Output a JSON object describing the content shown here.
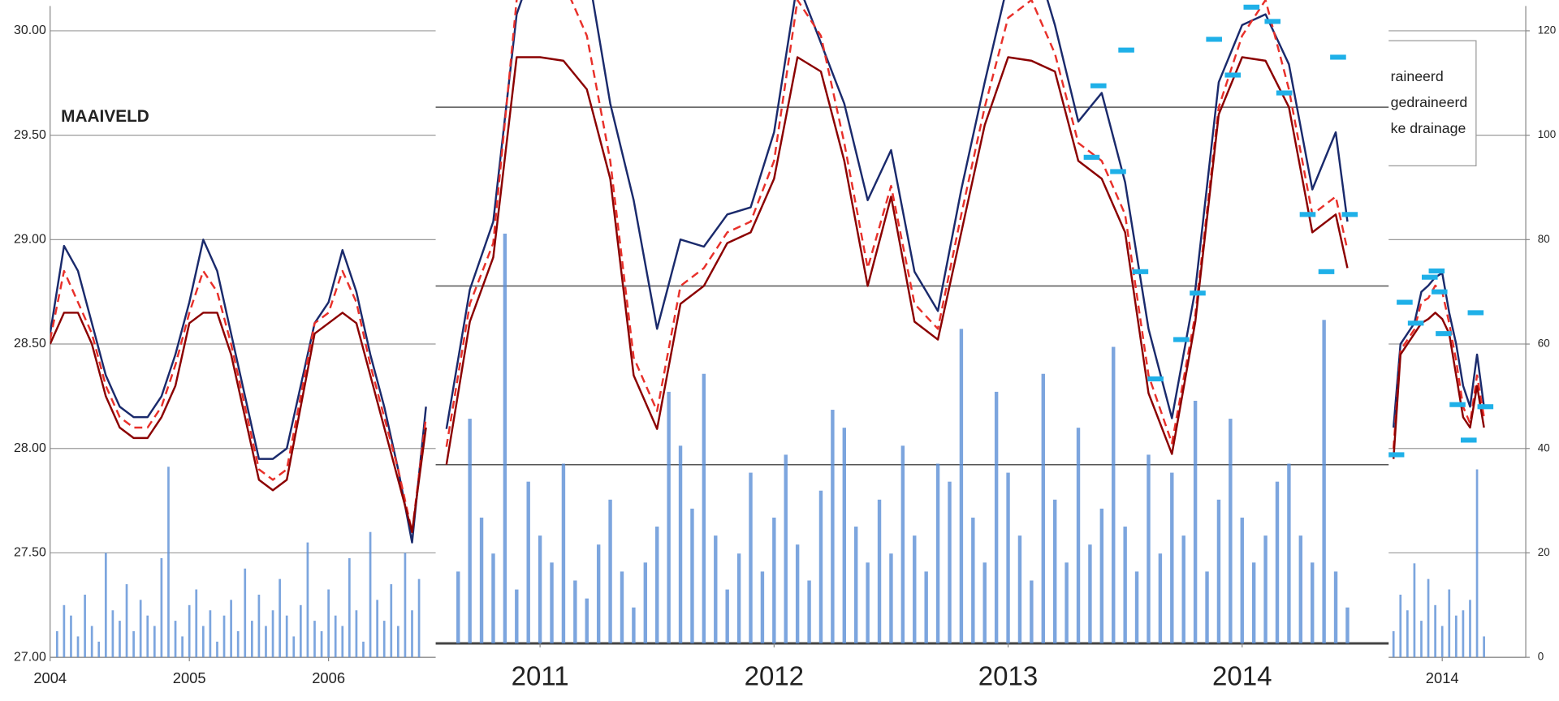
{
  "chart_data": [
    {
      "type": "line",
      "annotation": "MAAIVELD",
      "legend": [
        "raineerd",
        "gedraineerd",
        "ke drainage"
      ],
      "xlim": [
        2004,
        2014.6
      ],
      "xticks": [
        2004,
        2005,
        2006,
        2014
      ],
      "ylim": [
        27,
        30
      ],
      "yticks": [
        {
          "value": 27,
          "label": "27.00"
        },
        {
          "value": 27.5,
          "label": "27.50"
        },
        {
          "value": 28,
          "label": "28.00"
        },
        {
          "value": 28.5,
          "label": "28.50"
        },
        {
          "value": 29,
          "label": "29.00"
        },
        {
          "value": 29.5,
          "label": "29.50"
        },
        {
          "value": 30,
          "label": "30.00"
        }
      ],
      "y2lim": [
        0,
        120
      ],
      "y2ticks": [
        0,
        20,
        40,
        60,
        80,
        100,
        120
      ],
      "grid": true,
      "x": [
        2004,
        2004.1,
        2004.2,
        2004.3,
        2004.4,
        2004.5,
        2004.6,
        2004.7,
        2004.8,
        2004.9,
        2005,
        2005.1,
        2005.2,
        2005.3,
        2005.4,
        2005.5,
        2005.6,
        2005.7,
        2005.8,
        2005.9,
        2006,
        2006.1,
        2006.2,
        2006.3,
        2006.4,
        2006.5,
        2006.6,
        2006.7,
        2010,
        2013.65,
        2013.7,
        2013.75,
        2013.8,
        2013.85,
        2013.9,
        2013.95,
        2014,
        2014.05,
        2014.1,
        2014.15,
        2014.2,
        2014.25,
        2014.3
      ],
      "series": [
        {
          "style": "bar",
          "axis": "y2",
          "color": "#5b8fd6",
          "x": [
            2004.05,
            2004.1,
            2004.15,
            2004.2,
            2004.25,
            2004.3,
            2004.35,
            2004.4,
            2004.45,
            2004.5,
            2004.55,
            2004.6,
            2004.65,
            2004.7,
            2004.75,
            2004.8,
            2004.85,
            2004.9,
            2004.95,
            2005,
            2005.05,
            2005.1,
            2005.15,
            2005.2,
            2005.25,
            2005.3,
            2005.35,
            2005.4,
            2005.45,
            2005.5,
            2005.55,
            2005.6,
            2005.65,
            2005.7,
            2005.75,
            2005.8,
            2005.85,
            2005.9,
            2005.95,
            2006,
            2006.05,
            2006.1,
            2006.15,
            2006.2,
            2006.25,
            2006.3,
            2006.35,
            2006.4,
            2006.45,
            2006.5,
            2006.55,
            2006.6,
            2006.65,
            2013.65,
            2013.7,
            2013.75,
            2013.8,
            2013.85,
            2013.9,
            2013.95,
            2014,
            2014.05,
            2014.1,
            2014.15,
            2014.2,
            2014.25,
            2014.3
          ],
          "values": [
            5,
            10,
            8,
            4,
            12,
            6,
            3,
            20,
            9,
            7,
            14,
            5,
            11,
            8,
            6,
            19,
            36.5,
            7,
            4,
            10,
            13,
            6,
            9,
            3,
            8,
            11,
            5,
            17,
            7,
            12,
            6,
            9,
            15,
            8,
            4,
            10,
            22,
            7,
            5,
            13,
            8,
            6,
            19,
            9,
            3,
            24,
            11,
            7,
            14,
            6,
            20,
            9,
            15,
            5,
            12,
            9,
            18,
            7,
            15,
            10,
            6,
            13,
            8,
            9,
            11,
            36,
            4
          ]
        },
        {
          "style": "line",
          "color": "#1a2a6c",
          "values": [
            28.55,
            28.97,
            28.85,
            28.6,
            28.35,
            28.2,
            28.15,
            28.15,
            28.25,
            28.45,
            28.7,
            29.0,
            28.85,
            28.55,
            28.25,
            27.95,
            27.95,
            28.0,
            28.3,
            28.6,
            28.7,
            28.95,
            28.75,
            28.45,
            28.2,
            27.9,
            27.55,
            28.2,
            null,
            28.1,
            28.5,
            28.55,
            28.6,
            28.75,
            28.78,
            28.82,
            28.84,
            28.65,
            28.5,
            28.3,
            28.2,
            28.45,
            28.2
          ]
        },
        {
          "style": "dash",
          "color": "#e8302a",
          "values": [
            28.52,
            28.85,
            28.7,
            28.55,
            28.3,
            28.15,
            28.1,
            28.1,
            28.2,
            28.4,
            28.65,
            28.85,
            28.75,
            28.5,
            28.2,
            27.9,
            27.85,
            27.9,
            28.25,
            28.6,
            28.65,
            28.85,
            28.7,
            28.4,
            28.15,
            27.9,
            27.6,
            28.15,
            null,
            28.0,
            28.47,
            28.52,
            28.57,
            28.7,
            28.72,
            28.78,
            28.75,
            28.6,
            28.42,
            28.2,
            28.12,
            28.35,
            28.15
          ]
        },
        {
          "style": "line",
          "color": "#8b0000",
          "values": [
            28.5,
            28.65,
            28.65,
            28.5,
            28.25,
            28.1,
            28.05,
            28.05,
            28.15,
            28.3,
            28.6,
            28.65,
            28.65,
            28.45,
            28.15,
            27.85,
            27.8,
            27.85,
            28.2,
            28.55,
            28.6,
            28.65,
            28.6,
            28.35,
            28.1,
            27.85,
            27.6,
            28.1,
            null,
            27.95,
            28.45,
            28.5,
            28.55,
            28.6,
            28.62,
            28.65,
            28.62,
            28.55,
            28.35,
            28.15,
            28.1,
            28.3,
            28.1
          ]
        },
        {
          "style": "marker",
          "color": "#1fb0e8",
          "x": [
            2013.67,
            2013.73,
            2013.81,
            2013.91,
            2013.96,
            2013.98,
            2014.01,
            2014.11,
            2014.19,
            2014.24,
            2014.31
          ],
          "values": [
            27.97,
            28.7,
            28.6,
            28.82,
            28.85,
            28.75,
            28.55,
            28.21,
            28.04,
            28.65,
            28.2
          ]
        }
      ]
    },
    {
      "type": "line",
      "xlim": [
        2010.554,
        2014.626
      ],
      "xticks": [
        2011,
        2012,
        2013,
        2014
      ],
      "ylim": [
        27.5,
        29.3
      ],
      "ygrid": [
        27.5,
        28,
        28.5,
        29
      ],
      "y2lim": [
        0,
        71.6
      ],
      "x": [
        2010.6,
        2010.7,
        2010.8,
        2010.9,
        2011,
        2011.1,
        2011.2,
        2011.3,
        2011.4,
        2011.5,
        2011.6,
        2011.7,
        2011.8,
        2011.9,
        2012,
        2012.1,
        2012.2,
        2012.3,
        2012.4,
        2012.5,
        2012.6,
        2012.7,
        2012.8,
        2012.9,
        2013,
        2013.1,
        2013.2,
        2013.3,
        2013.4,
        2013.5,
        2013.6,
        2013.7,
        2013.8,
        2013.9,
        2014,
        2014.1,
        2014.2,
        2014.3,
        2014.4,
        2014.45
      ],
      "series": [
        {
          "style": "bar",
          "axis": "y2",
          "color": "#5b8fd6",
          "x": [
            2010.65,
            2010.7,
            2010.75,
            2010.8,
            2010.85,
            2010.9,
            2010.95,
            2011,
            2011.05,
            2011.1,
            2011.15,
            2011.2,
            2011.25,
            2011.3,
            2011.35,
            2011.4,
            2011.45,
            2011.5,
            2011.55,
            2011.6,
            2011.65,
            2011.7,
            2011.75,
            2011.8,
            2011.85,
            2011.9,
            2011.95,
            2012,
            2012.05,
            2012.1,
            2012.15,
            2012.2,
            2012.25,
            2012.3,
            2012.35,
            2012.4,
            2012.45,
            2012.5,
            2012.55,
            2012.6,
            2012.65,
            2012.7,
            2012.75,
            2012.8,
            2012.85,
            2012.9,
            2012.95,
            2013,
            2013.05,
            2013.1,
            2013.15,
            2013.2,
            2013.25,
            2013.3,
            2013.35,
            2013.4,
            2013.45,
            2013.5,
            2013.55,
            2013.6,
            2013.65,
            2013.7,
            2013.75,
            2013.8,
            2013.85,
            2013.9,
            2013.95,
            2014,
            2014.05,
            2014.1,
            2014.15,
            2014.2,
            2014.25,
            2014.3,
            2014.35,
            2014.4,
            2014.45
          ],
          "values": [
            8,
            25,
            14,
            10,
            45.6,
            6,
            18,
            12,
            9,
            20,
            7,
            5,
            11,
            16,
            8,
            4,
            9,
            13,
            28,
            22,
            15,
            30,
            12,
            6,
            10,
            19,
            8,
            14,
            21,
            11,
            7,
            17,
            26,
            24,
            13,
            9,
            16,
            10,
            22,
            12,
            8,
            20,
            18,
            35,
            14,
            9,
            28,
            19,
            12,
            7,
            30,
            16,
            9,
            24,
            11,
            15,
            33,
            13,
            8,
            21,
            10,
            19,
            12,
            27,
            8,
            16,
            25,
            14,
            9,
            12,
            18,
            20,
            12,
            9,
            36,
            8,
            4
          ]
        },
        {
          "style": "line",
          "color": "#1a2a6c",
          "values": [
            28.1,
            28.49,
            28.68,
            29.26,
            29.45,
            29.5,
            29.4,
            29.01,
            28.74,
            28.38,
            28.63,
            28.61,
            28.7,
            28.72,
            28.93,
            29.35,
            29.18,
            29.01,
            28.74,
            28.88,
            28.54,
            28.43,
            28.77,
            29.07,
            29.35,
            29.45,
            29.23,
            28.96,
            29.04,
            28.79,
            28.38,
            28.13,
            28.49,
            29.07,
            29.23,
            29.26,
            29.12,
            28.77,
            28.93,
            28.68
          ]
        },
        {
          "style": "dash",
          "color": "#e8302a",
          "values": [
            28.05,
            28.45,
            28.62,
            29.3,
            29.4,
            29.35,
            29.2,
            28.85,
            28.3,
            28.15,
            28.5,
            28.55,
            28.65,
            28.68,
            28.85,
            29.3,
            29.2,
            28.9,
            28.55,
            28.78,
            28.45,
            28.38,
            28.7,
            29.0,
            29.25,
            29.3,
            29.15,
            28.9,
            28.85,
            28.7,
            28.25,
            28.06,
            28.42,
            29.0,
            29.2,
            29.3,
            29.05,
            28.7,
            28.75,
            28.6
          ]
        },
        {
          "style": "line",
          "color": "#8b0000",
          "values": [
            28.0,
            28.4,
            28.58,
            29.14,
            29.14,
            29.13,
            29.05,
            28.8,
            28.25,
            28.1,
            28.45,
            28.5,
            28.62,
            28.65,
            28.8,
            29.14,
            29.1,
            28.85,
            28.5,
            28.75,
            28.4,
            28.35,
            28.65,
            28.95,
            29.14,
            29.13,
            29.1,
            28.85,
            28.8,
            28.65,
            28.2,
            28.03,
            28.4,
            28.98,
            29.14,
            29.13,
            29.0,
            28.65,
            28.7,
            28.55
          ]
        },
        {
          "style": "marker",
          "color": "#1fb0e8",
          "x": [
            2013.386,
            2013.505,
            2013.357,
            2013.47,
            2013.565,
            2013.63,
            2013.74,
            2013.81,
            2013.88,
            2013.96,
            2014.04,
            2014.13,
            2014.18,
            2014.28,
            2014.36,
            2014.41,
            2014.46
          ],
          "values": [
            29.06,
            29.16,
            28.86,
            28.82,
            28.54,
            28.24,
            28.35,
            28.48,
            29.19,
            29.09,
            29.28,
            29.24,
            29.04,
            28.7,
            28.54,
            29.14,
            28.7
          ]
        }
      ]
    }
  ]
}
